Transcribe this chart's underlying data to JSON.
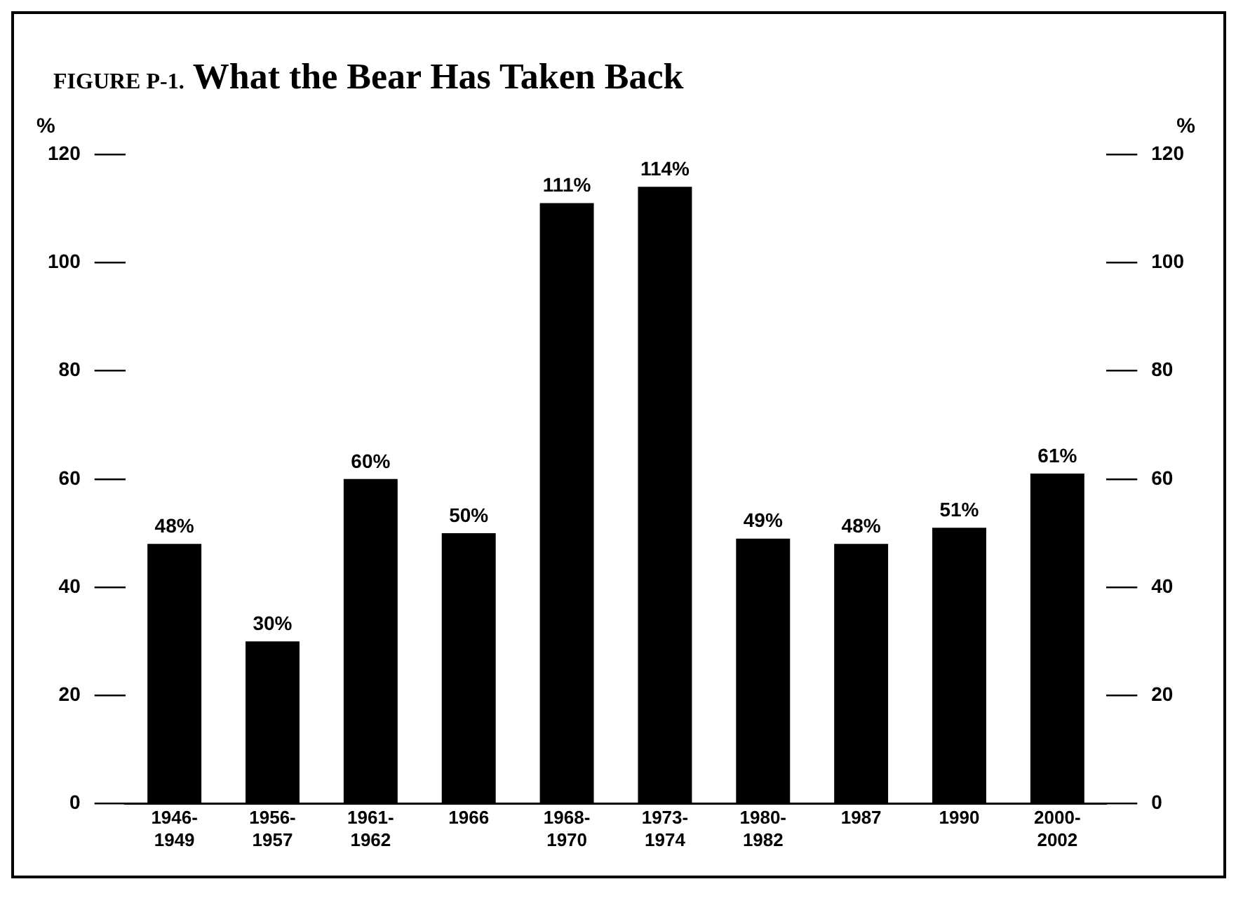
{
  "chart_data": {
    "type": "bar",
    "title": "FIGURE P-1. What the Bear Has Taken Back",
    "categories": [
      "1946-1949",
      "1956-1957",
      "1961-1962",
      "1966",
      "1968-1970",
      "1973-1974",
      "1980-1982",
      "1987",
      "1990",
      "2000-2002"
    ],
    "values": [
      48,
      30,
      60,
      50,
      111,
      114,
      49,
      48,
      51,
      61
    ],
    "value_labels": [
      "48%",
      "30%",
      "60%",
      "50%",
      "111%",
      "114%",
      "49%",
      "48%",
      "51%",
      "61%"
    ],
    "color": "#000000",
    "ylabel": "%",
    "y2label": "%",
    "ylim": [
      0,
      120
    ],
    "yticks": [
      0,
      20,
      40,
      60,
      80,
      100,
      120
    ],
    "y2lim": [
      0,
      120
    ],
    "y2ticks": [
      0,
      20,
      40,
      60,
      80,
      100,
      120
    ],
    "grid": false,
    "legend": false
  }
}
